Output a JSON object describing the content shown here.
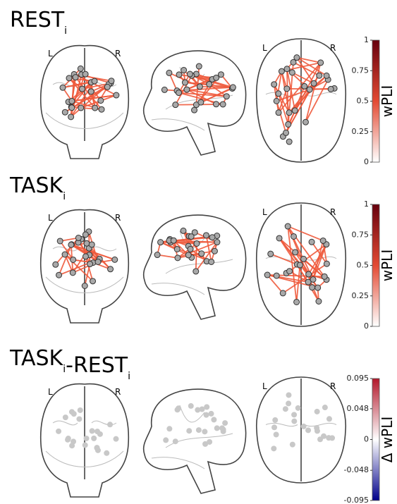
{
  "panels": [
    {
      "title": [
        {
          "text": "REST",
          "sub": "i"
        }
      ],
      "view_labels": {
        "coronal": [
          "L",
          "R"
        ],
        "axial": [
          "L",
          "R"
        ]
      },
      "colorbar": {
        "label": "wPLI",
        "lim": [
          0,
          1
        ],
        "ticks": [
          0,
          0.25,
          0.5,
          0.75,
          1
        ],
        "colors": [
          "#ffffff",
          "#e34a33",
          "#67000d"
        ]
      },
      "edge_color": "#ef5a3c",
      "node_color": "#a9a9a9"
    },
    {
      "title": [
        {
          "text": "TASK",
          "sub": "i"
        }
      ],
      "view_labels": {
        "coronal": [
          "L",
          "R"
        ],
        "axial": [
          "L",
          "R"
        ]
      },
      "colorbar": {
        "label": "wPLI",
        "lim": [
          0,
          1
        ],
        "ticks": [
          0,
          0.25,
          0.5,
          0.75,
          1
        ],
        "colors": [
          "#ffffff",
          "#e34a33",
          "#67000d"
        ]
      },
      "edge_color": "#ef5a3c",
      "node_color": "#a9a9a9"
    },
    {
      "title": [
        {
          "text": "TASK",
          "sub": "i"
        },
        {
          "text": "-REST",
          "sub": "i"
        }
      ],
      "view_labels": {
        "coronal": [
          "L",
          "R"
        ],
        "axial": [
          "L",
          "R"
        ]
      },
      "colorbar": {
        "label": "Δ wPLI",
        "lim": [
          -0.095,
          0.095
        ],
        "ticks": [
          -0.095,
          -0.048,
          0,
          0.048,
          0.095
        ],
        "colors": [
          "#00008b",
          "#ffffff",
          "#b2182b"
        ]
      },
      "edge_color": null,
      "node_color": "#c8c8c8"
    }
  ]
}
